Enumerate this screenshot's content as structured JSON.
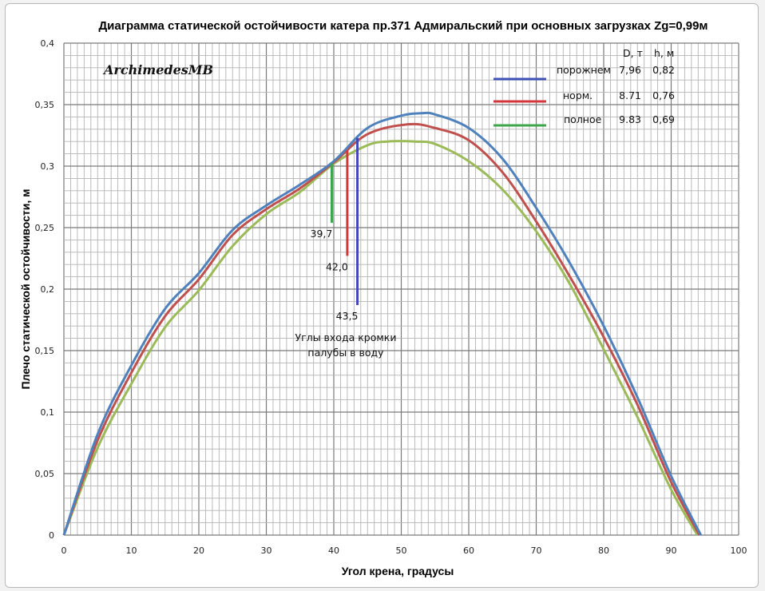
{
  "chart_data": {
    "type": "line",
    "title": "Диаграмма статической остойчивости катера пр.371 Адмиральский при основных загрузках  Zg=0,99м",
    "xlabel": "Угол крена, градусы",
    "ylabel": "Плечо статической остойчивости, м",
    "xlim": [
      0,
      100
    ],
    "ylim": [
      0,
      0.4
    ],
    "xticks": [
      "0",
      "10",
      "20",
      "30",
      "40",
      "50",
      "60",
      "70",
      "80",
      "90",
      "100"
    ],
    "yticks": [
      "0",
      "0,05",
      "0,1",
      "0,15",
      "0,2",
      "0,25",
      "0,3",
      "0,35",
      "0,4"
    ],
    "grid": "major and minor (1° / 0.01)",
    "watermark": "ArchimedesMB",
    "legend": {
      "position": "top-right",
      "header_d": "D, т",
      "header_h": "h, м",
      "entries": [
        {
          "name": "порожнем",
          "D": "7,96",
          "h": "0,82",
          "color": "#3F51B5"
        },
        {
          "name": "норм.",
          "D": "8.71",
          "h": "0,76",
          "color": "#D6363A"
        },
        {
          "name": "полное",
          "D": "9.83",
          "h": "0,69",
          "color": "#3DA54A"
        }
      ]
    },
    "series": [
      {
        "name": "порожнем",
        "color": "#4F81BD",
        "x": [
          0,
          5,
          10,
          15,
          20,
          25,
          30,
          35,
          40,
          45,
          50,
          53,
          55,
          60,
          65,
          70,
          75,
          80,
          85,
          90,
          94.4
        ],
        "y": [
          0,
          0.082,
          0.138,
          0.184,
          0.213,
          0.248,
          0.268,
          0.285,
          0.304,
          0.331,
          0.341,
          0.343,
          0.342,
          0.331,
          0.306,
          0.266,
          0.221,
          0.17,
          0.112,
          0.048,
          0
        ]
      },
      {
        "name": "норм.",
        "color": "#C0504D",
        "x": [
          0,
          5,
          10,
          15,
          20,
          25,
          30,
          35,
          40,
          45,
          51,
          55,
          60,
          65,
          70,
          75,
          80,
          85,
          90,
          94.2
        ],
        "y": [
          0,
          0.077,
          0.132,
          0.178,
          0.208,
          0.244,
          0.265,
          0.282,
          0.303,
          0.326,
          0.334,
          0.331,
          0.321,
          0.295,
          0.255,
          0.21,
          0.161,
          0.106,
          0.043,
          0
        ]
      },
      {
        "name": "полное",
        "color": "#9BBB59",
        "x": [
          0,
          5,
          10,
          15,
          20,
          25,
          30,
          35,
          40,
          45,
          48,
          52,
          55,
          60,
          65,
          70,
          75,
          80,
          85,
          90,
          93.9
        ],
        "y": [
          0,
          0.071,
          0.123,
          0.169,
          0.199,
          0.235,
          0.261,
          0.279,
          0.302,
          0.317,
          0.32,
          0.32,
          0.318,
          0.304,
          0.281,
          0.247,
          0.204,
          0.151,
          0.096,
          0.037,
          0
        ]
      }
    ],
    "annotations": {
      "deck_entry_caption": [
        "Углы входа кромки",
        "палубы в воду"
      ],
      "markers": [
        {
          "label": "39,7",
          "x": 39.7,
          "y_top": 0.302,
          "y_bottom": 0.254,
          "color": "#3DA54A"
        },
        {
          "label": "42,0",
          "x": 42.0,
          "y_top": 0.313,
          "y_bottom": 0.227,
          "color": "#D6363A"
        },
        {
          "label": "43,5",
          "x": 43.5,
          "y_top": 0.323,
          "y_bottom": 0.187,
          "color": "#3F48B8"
        }
      ]
    }
  }
}
